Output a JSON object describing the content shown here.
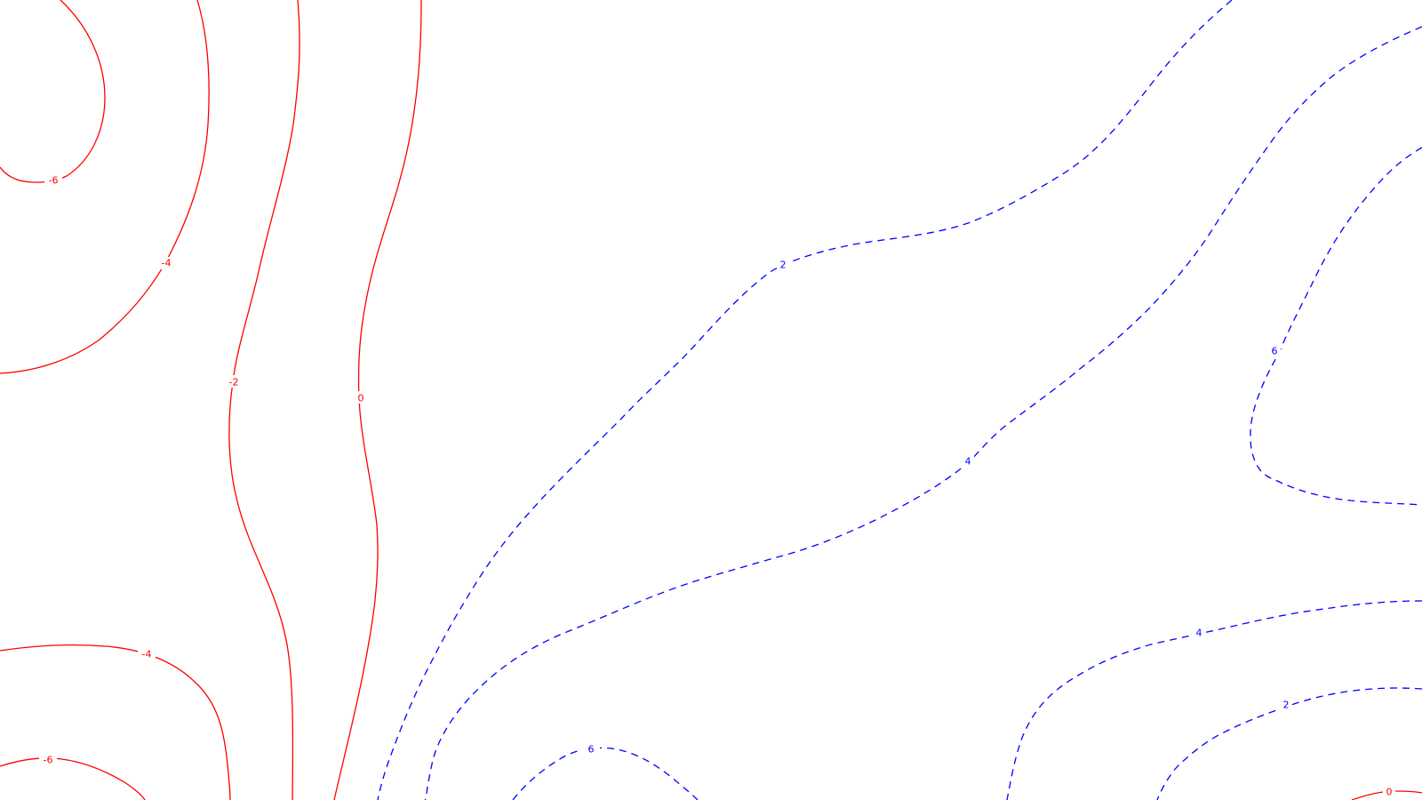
{
  "plot": {
    "negative_color": "#ff0000",
    "positive_color": "#0000ff",
    "negative_style": "solid",
    "positive_style": "dashed",
    "labels": {
      "neg6_top": "-6",
      "neg4_top": "-4",
      "neg2": "-2",
      "zero_left": "0",
      "neg4_bottom": "-4",
      "neg6_bottom": "-6",
      "pos2_middle": "2",
      "pos4_middle": "4",
      "pos6_right": "6",
      "pos4_bottom_right": "4",
      "pos2_bottom_right": "2",
      "zero_bottom_right": "0",
      "pos6_bottom": "6"
    }
  }
}
